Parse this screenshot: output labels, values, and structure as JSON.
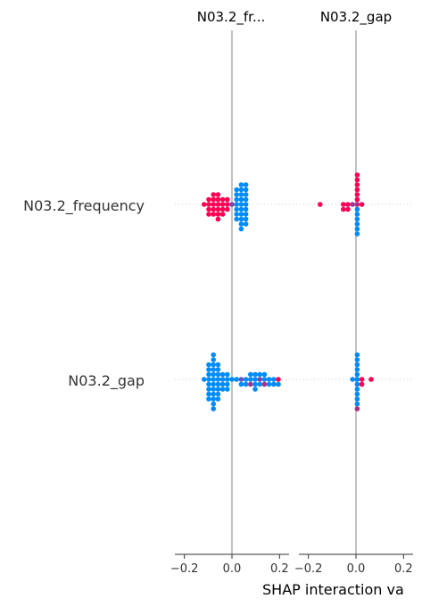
{
  "chart_data": {
    "type": "scatter",
    "title": "",
    "xlabel": "SHAP interaction va",
    "features": [
      "N03.2_frequency",
      "N03.2_gap"
    ],
    "panels": [
      {
        "title": "N03.2_fr...",
        "xlim": [
          -0.24,
          0.24
        ],
        "xticks": [
          -0.2,
          0.0,
          0.2
        ],
        "tick_labels": [
          "−0.2",
          "0.0",
          "0.2"
        ],
        "rows": [
          {
            "feature": "N03.2_frequency",
            "points": [
              {
                "v": 0.03,
                "c": 0
              },
              {
                "v": 0.03,
                "c": 0
              },
              {
                "v": 0.03,
                "c": 0
              },
              {
                "v": 0.03,
                "c": 0
              },
              {
                "v": 0.03,
                "c": 0
              },
              {
                "v": 0.04,
                "c": 0
              },
              {
                "v": 0.04,
                "c": 0
              },
              {
                "v": 0.04,
                "c": 0
              },
              {
                "v": 0.04,
                "c": 0
              },
              {
                "v": 0.04,
                "c": 0
              },
              {
                "v": 0.05,
                "c": 0
              },
              {
                "v": 0.05,
                "c": 0
              },
              {
                "v": 0.05,
                "c": 0
              },
              {
                "v": 0.05,
                "c": 0
              },
              {
                "v": 0.05,
                "c": 0
              },
              {
                "v": 0.06,
                "c": 0
              },
              {
                "v": 0.06,
                "c": 0
              },
              {
                "v": 0.06,
                "c": 0
              },
              {
                "v": 0.06,
                "c": 0
              },
              {
                "v": 0.02,
                "c": 0
              },
              {
                "v": 0.02,
                "c": 0
              },
              {
                "v": 0.02,
                "c": 0
              },
              {
                "v": 0.02,
                "c": 0
              },
              {
                "v": 0.01,
                "c": 0
              },
              {
                "v": 0.01,
                "c": 0
              },
              {
                "v": 0.01,
                "c": 0
              },
              {
                "v": 0.0,
                "c": 0.5
              },
              {
                "v": -0.01,
                "c": 1
              },
              {
                "v": -0.02,
                "c": 1
              },
              {
                "v": -0.03,
                "c": 1
              },
              {
                "v": -0.04,
                "c": 1
              },
              {
                "v": -0.04,
                "c": 1
              },
              {
                "v": -0.05,
                "c": 1
              },
              {
                "v": -0.05,
                "c": 1
              },
              {
                "v": -0.06,
                "c": 1
              },
              {
                "v": -0.06,
                "c": 1
              },
              {
                "v": -0.07,
                "c": 1
              },
              {
                "v": -0.07,
                "c": 1
              },
              {
                "v": -0.08,
                "c": 1
              },
              {
                "v": -0.08,
                "c": 1
              },
              {
                "v": -0.09,
                "c": 1
              },
              {
                "v": -0.09,
                "c": 1
              },
              {
                "v": -0.1,
                "c": 1
              },
              {
                "v": -0.1,
                "c": 1
              },
              {
                "v": -0.11,
                "c": 1
              },
              {
                "v": -0.05,
                "c": 1
              },
              {
                "v": -0.02,
                "c": 1
              },
              {
                "v": -0.03,
                "c": 1
              },
              {
                "v": -0.06,
                "c": 1
              },
              {
                "v": -0.07,
                "c": 1
              }
            ]
          },
          {
            "feature": "N03.2_gap",
            "points": [
              {
                "v": -0.09,
                "c": 0
              },
              {
                "v": -0.08,
                "c": 0
              },
              {
                "v": -0.07,
                "c": 0
              },
              {
                "v": -0.06,
                "c": 0
              },
              {
                "v": -0.05,
                "c": 0
              },
              {
                "v": -0.09,
                "c": 0
              },
              {
                "v": -0.08,
                "c": 0
              },
              {
                "v": -0.07,
                "c": 0
              },
              {
                "v": -0.06,
                "c": 0
              },
              {
                "v": -0.05,
                "c": 0
              },
              {
                "v": -0.1,
                "c": 0
              },
              {
                "v": -0.09,
                "c": 0
              },
              {
                "v": -0.08,
                "c": 0
              },
              {
                "v": -0.07,
                "c": 0
              },
              {
                "v": -0.06,
                "c": 0
              },
              {
                "v": -0.1,
                "c": 0
              },
              {
                "v": -0.09,
                "c": 0
              },
              {
                "v": -0.08,
                "c": 0
              },
              {
                "v": -0.07,
                "c": 0
              },
              {
                "v": -0.06,
                "c": 0
              },
              {
                "v": -0.11,
                "c": 0
              },
              {
                "v": -0.1,
                "c": 0
              },
              {
                "v": -0.09,
                "c": 0
              },
              {
                "v": -0.08,
                "c": 0
              },
              {
                "v": -0.07,
                "c": 0
              },
              {
                "v": -0.04,
                "c": 0
              },
              {
                "v": -0.03,
                "c": 0
              },
              {
                "v": -0.02,
                "c": 0
              },
              {
                "v": -0.01,
                "c": 0
              },
              {
                "v": 0.0,
                "c": 0
              },
              {
                "v": -0.04,
                "c": 0
              },
              {
                "v": -0.03,
                "c": 0
              },
              {
                "v": -0.02,
                "c": 0
              },
              {
                "v": -0.01,
                "c": 0
              },
              {
                "v": 0.02,
                "c": 0
              },
              {
                "v": 0.03,
                "c": 0.4
              },
              {
                "v": 0.04,
                "c": 0
              },
              {
                "v": 0.05,
                "c": 0
              },
              {
                "v": 0.06,
                "c": 0
              },
              {
                "v": 0.07,
                "c": 0
              },
              {
                "v": 0.08,
                "c": 0.6
              },
              {
                "v": 0.09,
                "c": 0
              },
              {
                "v": 0.1,
                "c": 0
              },
              {
                "v": 0.11,
                "c": 0.5
              },
              {
                "v": 0.12,
                "c": 0
              },
              {
                "v": 0.13,
                "c": 0
              },
              {
                "v": 0.14,
                "c": 0.7
              },
              {
                "v": 0.15,
                "c": 0
              },
              {
                "v": 0.16,
                "c": 0
              },
              {
                "v": 0.17,
                "c": 0
              },
              {
                "v": 0.18,
                "c": 0
              },
              {
                "v": 0.19,
                "c": 1
              },
              {
                "v": 0.2,
                "c": 0
              },
              {
                "v": 0.13,
                "c": 0
              },
              {
                "v": 0.1,
                "c": 0
              },
              {
                "v": 0.09,
                "c": 0
              },
              {
                "v": 0.11,
                "c": 0
              },
              {
                "v": 0.07,
                "c": 0
              },
              {
                "v": -0.06,
                "c": 0
              },
              {
                "v": -0.05,
                "c": 0
              },
              {
                "v": -0.07,
                "c": 0
              },
              {
                "v": -0.08,
                "c": 0
              }
            ]
          }
        ]
      },
      {
        "title": "N03.2_gap",
        "xlim": [
          -0.24,
          0.24
        ],
        "xticks": [
          -0.2,
          0.0,
          0.2
        ],
        "tick_labels": [
          "−0.2",
          "0.0",
          "0.2"
        ],
        "rows": [
          {
            "feature": "N03.2_frequency",
            "points": [
              {
                "v": -0.16,
                "c": 1
              },
              {
                "v": -0.06,
                "c": 1
              },
              {
                "v": -0.05,
                "c": 1
              },
              {
                "v": -0.04,
                "c": 1
              },
              {
                "v": -0.03,
                "c": 1
              },
              {
                "v": -0.02,
                "c": 0.6
              },
              {
                "v": 0.01,
                "c": 0.7
              },
              {
                "v": 0.02,
                "c": 1
              },
              {
                "v": 0.0,
                "c": 0
              },
              {
                "v": 0.0,
                "c": 1
              },
              {
                "v": 0.0,
                "c": 0
              },
              {
                "v": 0.0,
                "c": 1
              },
              {
                "v": 0.0,
                "c": 0
              },
              {
                "v": 0.0,
                "c": 1
              },
              {
                "v": 0.0,
                "c": 0
              },
              {
                "v": 0.0,
                "c": 1
              },
              {
                "v": 0.0,
                "c": 0
              },
              {
                "v": 0.0,
                "c": 1
              },
              {
                "v": 0.0,
                "c": 0
              },
              {
                "v": 0.0,
                "c": 1
              }
            ]
          },
          {
            "feature": "N03.2_gap",
            "points": [
              {
                "v": -0.01,
                "c": 0
              },
              {
                "v": 0.0,
                "c": 0
              },
              {
                "v": 0.0,
                "c": 0
              },
              {
                "v": 0.0,
                "c": 0
              },
              {
                "v": 0.0,
                "c": 0
              },
              {
                "v": 0.0,
                "c": 0
              },
              {
                "v": 0.0,
                "c": 0
              },
              {
                "v": 0.0,
                "c": 0
              },
              {
                "v": 0.0,
                "c": 0
              },
              {
                "v": 0.0,
                "c": 0
              },
              {
                "v": 0.0,
                "c": 0
              },
              {
                "v": 0.0,
                "c": 0
              },
              {
                "v": 0.01,
                "c": 0.7
              },
              {
                "v": 0.02,
                "c": 1
              },
              {
                "v": 0.03,
                "c": 1
              },
              {
                "v": 0.07,
                "c": 1
              }
            ]
          }
        ]
      }
    ],
    "color_low": "#008bfb",
    "color_high": "#ff0052",
    "axis_color": "#333333",
    "zero_line_color": "#999999",
    "row_guide_color": "#cccccc"
  }
}
